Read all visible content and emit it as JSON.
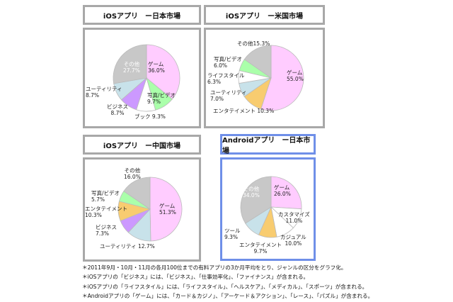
{
  "chart_data": [
    {
      "type": "pie",
      "title": "iOSアプリ　ー日本市場",
      "categories": [
        "ゲーム",
        "写真/ビデオ",
        "ブック",
        "ビジネス",
        "ユーティリティ",
        "その他"
      ],
      "values": [
        36.0,
        9.7,
        9.3,
        8.7,
        8.7,
        27.7
      ],
      "colors": [
        "#ffccff",
        "#aaffaa",
        "#ffffff",
        "#cc99ff",
        "#c8e2ea",
        "#c8c8c8"
      ],
      "labels": [
        "ゲーム\n36.0%",
        "写真/ビデオ\n9.7%",
        "ブック 9.3%",
        "ビジネス\n8.7%",
        "ユーティリティ\n8.7%",
        "その他\n27.7%"
      ]
    },
    {
      "type": "pie",
      "title": "iOSアプリ　ー米国市場",
      "categories": [
        "ゲーム",
        "エンタテイメント",
        "ユーティリティ",
        "ライフスタイル",
        "写真/ビデオ",
        "その他"
      ],
      "values": [
        55.0,
        10.3,
        7.0,
        6.3,
        6.0,
        15.3
      ],
      "colors": [
        "#ffccff",
        "#f8cc70",
        "#c8e2ea",
        "#ffffff",
        "#aaffaa",
        "#c8c8c8"
      ],
      "labels": [
        "ゲーム\n55.0%",
        "エンタテイメント 10.3%",
        "ユーティリティ\n7.0%",
        "ライフスタイル\n6.3%",
        "写真/ビデオ\n6.0%",
        "その他15.3%"
      ]
    },
    {
      "type": "pie",
      "title": "iOSアプリ　ー中国市場",
      "categories": [
        "ゲーム",
        "ユーティリティ",
        "ビジネス",
        "エンタテイメント",
        "写真/ビデオ",
        "その他"
      ],
      "values": [
        51.3,
        12.7,
        7.3,
        10.3,
        5.7,
        16.0
      ],
      "colors": [
        "#ffccff",
        "#c8e2ea",
        "#cc99ff",
        "#f8cc70",
        "#aaffaa",
        "#c8c8c8"
      ],
      "labels": [
        "ゲーム\n51.3%",
        "ユーティリティ 12.7%",
        "ビジネス\n7.3%",
        "エンタテイメント\n10.3%",
        "写真/ビデオ\n5.7%",
        "その他\n16.0%"
      ]
    },
    {
      "type": "pie",
      "title": "Androidアプリ　ー日本市場",
      "categories": [
        "ゲーム",
        "カスタマイズ",
        "カジュアル",
        "エンタテイメント",
        "ツール",
        "その他"
      ],
      "values": [
        26.0,
        11.0,
        10.0,
        9.7,
        9.3,
        34.0
      ],
      "colors": [
        "#ffccff",
        "#ffffff",
        "#ffffff",
        "#f8cc70",
        "#c8e2ea",
        "#c8c8c8"
      ],
      "labels": [
        "ゲーム\n26.0%",
        "カスタマイズ\n11.0%",
        "カジュアル\n10.0%",
        "エンタテイメント\n9.7%",
        "ツール\n9.3%",
        "その他\n34.0%"
      ]
    }
  ],
  "notes": [
    "＊2011年9月・10月・11月の各月100位までの有料アプリの3か月平均をとり、ジャンルの区分をグラフ化。",
    "＊iOSアプリの「ビジネス」には、「ビジネス」、「仕事効率化」、「ファイナンス」が含まれる。",
    "＊iOSアプリの「ライフスタイル」には、「ライフスタイル」、「ヘルスケア」、「メディカル」、「スポーツ」が含まれる。",
    "＊Androidアプリの「ゲーム」には、「カード＆カジノ」、「アーケード＆アクション」、「レース」、「パズル」が含まれる。"
  ]
}
